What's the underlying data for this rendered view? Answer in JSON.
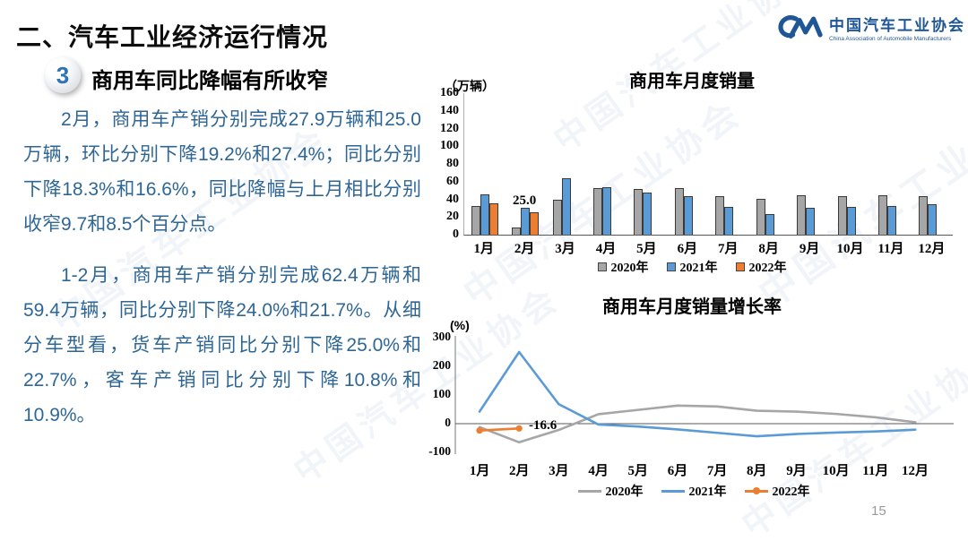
{
  "header": {
    "title": "二、汽车工业经济运行情况",
    "badge": "3",
    "section_title": "商用车同比降幅有所收窄"
  },
  "logo": {
    "name": "中国汽车工业协会",
    "subtext": "China Association of Automobile Manufacturers",
    "color": "#1f5796"
  },
  "body": {
    "paragraph1": "2月，商用车产销分别完成27.9万辆和25.0万辆，环比分别下降19.2%和27.4%；同比分别下降18.3%和16.6%，同比降幅与上月相比分别收窄9.7和8.5个百分点。",
    "paragraph2": "1-2月，商用车产销分别完成62.4万辆和59.4万辆，同比分别下降24.0%和21.7%。从细分车型看，货车产销同比分别下降25.0%和22.7%，客车产销同比分别下降10.8%和10.9%。"
  },
  "watermark": {
    "text": "中国汽车工业协会"
  },
  "page": {
    "number": "15"
  },
  "chart_data": [
    {
      "type": "bar",
      "title": "商用车月度销量",
      "unit_label": "（万辆）",
      "categories": [
        "1月",
        "2月",
        "3月",
        "4月",
        "5月",
        "6月",
        "7月",
        "8月",
        "9月",
        "10月",
        "11月",
        "12月"
      ],
      "y_ticks": [
        0,
        20,
        40,
        60,
        80,
        100,
        120,
        140,
        160
      ],
      "ylim": [
        0,
        160
      ],
      "grid": false,
      "legend_position": "bottom",
      "series": [
        {
          "name": "2020年",
          "color": "#A6A6A6",
          "values": [
            32,
            8,
            40,
            53,
            52,
            53,
            44,
            41,
            45,
            44,
            45,
            44
          ]
        },
        {
          "name": "2021年",
          "color": "#5B9BD5",
          "values": [
            46,
            30,
            64,
            54,
            48,
            44,
            31,
            23,
            30,
            31,
            32,
            34
          ]
        },
        {
          "name": "2022年",
          "color": "#ED7D31",
          "values": [
            35,
            25,
            null,
            null,
            null,
            null,
            null,
            null,
            null,
            null,
            null,
            null
          ]
        }
      ],
      "annotation": {
        "text": "25.0",
        "series": "2022年",
        "category": "2月",
        "value": 25.0
      }
    },
    {
      "type": "line",
      "title": "商用车月度销量增长率",
      "unit_label": "(%)",
      "categories": [
        "1月",
        "2月",
        "3月",
        "4月",
        "5月",
        "6月",
        "7月",
        "8月",
        "9月",
        "10月",
        "11月",
        "12月"
      ],
      "y_ticks": [
        300,
        200,
        100,
        0,
        -100
      ],
      "ylim": [
        -100,
        300
      ],
      "grid": false,
      "legend_position": "bottom",
      "series": [
        {
          "name": "2020年",
          "color": "#A6A6A6",
          "markers": false,
          "values": [
            -12,
            -65,
            -22,
            33,
            48,
            63,
            60,
            45,
            42,
            34,
            22,
            5
          ]
        },
        {
          "name": "2021年",
          "color": "#5B9BD5",
          "markers": false,
          "values": [
            42,
            250,
            68,
            -3,
            -10,
            -20,
            -32,
            -44,
            -36,
            -31,
            -27,
            -21
          ]
        },
        {
          "name": "2022年",
          "color": "#ED7D31",
          "markers": true,
          "values": [
            -24,
            -16.6,
            null,
            null,
            null,
            null,
            null,
            null,
            null,
            null,
            null,
            null
          ]
        }
      ],
      "annotation": {
        "text": "-16.6",
        "series": "2022年",
        "category": "2月",
        "value": -16.6
      }
    }
  ]
}
